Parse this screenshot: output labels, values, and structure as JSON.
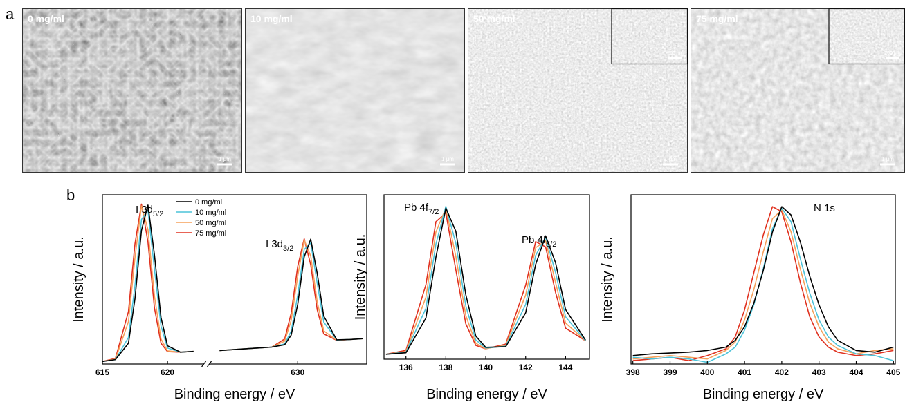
{
  "figure": {
    "panel_labels": [
      "a",
      "b"
    ]
  },
  "sem_images": [
    {
      "label": "0 mg/ml",
      "scale_bar": "1 μm"
    },
    {
      "label": "10 mg/ml",
      "scale_bar": "1 μm"
    },
    {
      "label": "50 mg/ml",
      "scale_bar": "1 μm",
      "inset_scale_bar": "200 nm"
    },
    {
      "label": "75 mg/ml",
      "scale_bar": "1 μm",
      "inset_scale_bar": "200 nm"
    }
  ],
  "chart_data": [
    {
      "type": "line",
      "x_label": "Binding energy / eV",
      "y_label": "Intensity / a.u.",
      "xlim": [
        615,
        635.3
      ],
      "xticks": [
        615,
        620,
        630
      ],
      "ylim": [
        0,
        100
      ],
      "x_break": [
        622,
        624
      ],
      "legend": "upper center",
      "annotations": [
        {
          "text": "I 3d",
          "sub": "5/2"
        },
        {
          "text": "I 3d",
          "sub": "3/2"
        }
      ],
      "x": [
        615,
        616,
        617,
        617.5,
        618,
        618.5,
        619,
        619.5,
        620,
        621,
        622,
        623,
        624,
        626,
        628,
        629,
        629.5,
        630,
        630.5,
        631,
        631.5,
        632,
        633,
        634,
        635
      ],
      "series": [
        {
          "name": "0 mg/ml",
          "color": "#000000",
          "values": [
            1.5,
            2.6,
            12.3,
            38.5,
            78.9,
            93.9,
            64.3,
            27.5,
            10.8,
            7,
            7.5,
            null,
            8,
            9,
            10,
            11.4,
            17.1,
            35.2,
            63.3,
            73.8,
            53.5,
            28.3,
            14.3,
            14.5,
            15
          ]
        },
        {
          "name": "10 mg/ml",
          "color": "#4cc3d9",
          "values": [
            1.5,
            2.6,
            15.7,
            46.2,
            85.4,
            90.9,
            55.9,
            22.4,
            9.5,
            7,
            7.5,
            null,
            8,
            9,
            10,
            11.9,
            19.4,
            40.6,
            67.7,
            71.6,
            47.7,
            24.8,
            14.2,
            14.5,
            15
          ]
        },
        {
          "name": "50 mg/ml",
          "color": "#f5a05a",
          "values": [
            1.5,
            2.9,
            25,
            62.8,
            93.4,
            79.4,
            40,
            14.8,
            7.8,
            7,
            7.5,
            null,
            8,
            9,
            10,
            13.5,
            25.8,
            52,
            73.3,
            63.8,
            36.7,
            19.6,
            14.1,
            14.5,
            15
          ]
        },
        {
          "name": "75 mg/ml",
          "color": "#e0301e",
          "values": [
            1.5,
            3.3,
            31,
            71,
            94.5,
            72,
            33,
            12.3,
            7.3,
            7,
            7.5,
            null,
            8,
            9,
            10,
            14.8,
            30,
            57.6,
            74,
            58.6,
            32,
            17.8,
            14,
            14.5,
            15
          ]
        }
      ]
    },
    {
      "type": "line",
      "x_label": "Binding energy / eV",
      "y_label": "Intensity / a.u.",
      "xlim": [
        134.9,
        145.2
      ],
      "xticks": [
        136,
        138,
        140,
        142,
        144
      ],
      "ylim": [
        0,
        100
      ],
      "annotations": [
        {
          "text": "Pb 4f",
          "sub": "7/2"
        },
        {
          "text": "Pb 4f",
          "sub": "5/2"
        }
      ],
      "x": [
        135,
        136,
        137,
        137.5,
        138,
        138.5,
        139,
        139.5,
        140,
        141,
        142,
        142.5,
        143,
        143.5,
        144,
        145
      ],
      "series": [
        {
          "color": "#000000",
          "values": [
            3,
            3.9,
            25,
            62,
            91.9,
            77.8,
            39.2,
            14.1,
            7.2,
            7.6,
            28.2,
            57.6,
            75,
            58.6,
            30.2,
            11.6
          ]
        },
        {
          "color": "#4cc3d9",
          "values": [
            3,
            4.3,
            30.9,
            70,
            93,
            70.5,
            32.4,
            11.7,
            6.8,
            7.9,
            33.3,
            63.1,
            74.2,
            52.6,
            25.8,
            11.3
          ]
        },
        {
          "color": "#f5a05a",
          "values": [
            3,
            4.7,
            37.7,
            77.3,
            91.9,
            62.5,
            26.5,
            9.7,
            6.4,
            8.5,
            39,
            67.8,
            72,
            46.5,
            22,
            11.2
          ]
        },
        {
          "color": "#e0301e",
          "values": [
            3,
            5.4,
            45.3,
            83.6,
            89,
            54.3,
            21.5,
            8.4,
            6.3,
            9.2,
            45,
            71.5,
            68.3,
            40.5,
            18.9,
            11.2
          ]
        }
      ]
    },
    {
      "type": "line",
      "x_label": "Binding energy / eV",
      "y_label": "Intensity / a.u.",
      "xlim": [
        397.95,
        405.05
      ],
      "xticks": [
        398,
        399,
        400,
        401,
        402,
        403,
        404,
        405
      ],
      "ylim": [
        0,
        100
      ],
      "annotations": [
        {
          "text": "N 1s"
        }
      ],
      "x": [
        398,
        398.5,
        399,
        399.5,
        400,
        400.5,
        400.75,
        401,
        401.25,
        401.5,
        401.75,
        402,
        402.25,
        402.5,
        402.75,
        403,
        403.25,
        403.5,
        404,
        404.5,
        405
      ],
      "series": [
        {
          "color": "#000000",
          "values": [
            5,
            6,
            6.5,
            7,
            8,
            10,
            14,
            22,
            36,
            55,
            78,
            93,
            88,
            72,
            52,
            35,
            22,
            14,
            8,
            7,
            10
          ]
        },
        {
          "color": "#4cc3d9",
          "values": [
            4,
            3,
            4,
            3,
            1,
            6,
            10,
            20,
            35,
            56,
            80,
            92,
            84,
            62,
            42,
            26,
            16,
            11,
            6,
            5,
            2
          ]
        },
        {
          "color": "#f5a05a",
          "values": [
            3,
            4,
            5,
            4,
            3,
            8,
            13,
            26,
            44,
            66,
            86,
            91,
            78,
            56,
            36,
            22,
            13,
            9,
            6,
            8,
            9
          ]
        },
        {
          "color": "#e0301e",
          "values": [
            2,
            3,
            4,
            2,
            5,
            9,
            16,
            32,
            54,
            76,
            93,
            90,
            72,
            48,
            28,
            16,
            10,
            7,
            5,
            6,
            8
          ]
        }
      ]
    }
  ]
}
